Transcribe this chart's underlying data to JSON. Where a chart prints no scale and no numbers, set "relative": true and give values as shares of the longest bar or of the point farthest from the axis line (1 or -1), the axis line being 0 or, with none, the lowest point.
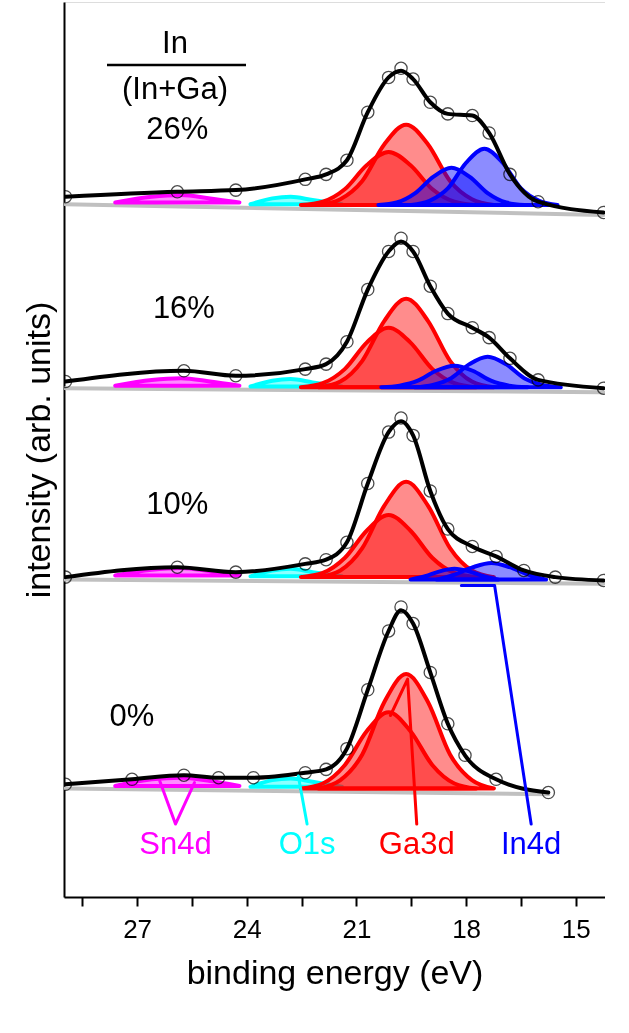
{
  "chart_data": {
    "type": "line",
    "relative": true,
    "xlabel": "binding energy (eV)",
    "ylabel": "intensity (arb. units)",
    "xlim": [
      29,
      14.2
    ],
    "xticks": [
      {
        "value": 28.5,
        "label": null
      },
      27,
      {
        "value": 25.5,
        "label": null
      },
      24,
      {
        "value": 22.5,
        "label": null
      },
      21,
      {
        "value": 19.5,
        "label": null
      },
      18,
      {
        "value": 16.5,
        "label": null
      },
      15
    ],
    "series": [
      {
        "color": "#c0c0c0",
        "x": [
          28.96,
          15.75
        ],
        "values": [
          0.131,
          0.124
        ]
      },
      {
        "color": "#c0c0c0",
        "x": [
          28.96,
          14.24
        ],
        "values": [
          0.383,
          0.378
        ]
      },
      {
        "color": "#c0c0c0",
        "x": [
          28.96,
          14.24
        ],
        "values": [
          0.614,
          0.609
        ]
      },
      {
        "color": "#c0c0c0",
        "x": [
          28.96,
          14.24
        ],
        "values": [
          0.836,
          0.823
        ]
      },
      {
        "type": "area",
        "color": "#ff00ff",
        "x": [
          27.6,
          26.6,
          25.8,
          25.0,
          24.2
        ],
        "values": [
          0.134,
          0.142,
          0.144,
          0.14,
          0.134
        ]
      },
      {
        "type": "area",
        "color": "#00ffff",
        "x": [
          23.9,
          23.3,
          22.8,
          22.2,
          21.4
        ],
        "values": [
          0.133,
          0.141,
          0.143,
          0.139,
          0.133
        ]
      },
      {
        "type": "area",
        "color": "#ff0000",
        "x": [
          22.52,
          21.92,
          21.32,
          20.72,
          20.12,
          19.52,
          18.92,
          18.32,
          17.72
        ],
        "values": [
          0.131,
          0.137,
          0.159,
          0.2,
          0.223,
          0.2,
          0.159,
          0.137,
          0.131
        ]
      },
      {
        "type": "area",
        "color": "#ff0000",
        "x": [
          22.04,
          21.44,
          20.84,
          20.24,
          19.64,
          19.04,
          18.44,
          17.84,
          17.24
        ],
        "values": [
          0.131,
          0.141,
          0.172,
          0.235,
          0.269,
          0.235,
          0.172,
          0.141,
          0.131
        ]
      },
      {
        "type": "area",
        "color": "#ff00ff",
        "x": [
          27.6,
          26.6,
          25.8,
          25.0,
          24.2
        ],
        "values": [
          0.388,
          0.395,
          0.397,
          0.393,
          0.388
        ]
      },
      {
        "type": "area",
        "color": "#00ffff",
        "x": [
          23.9,
          23.3,
          22.8,
          22.2,
          21.4
        ],
        "values": [
          0.387,
          0.394,
          0.396,
          0.392,
          0.387
        ]
      },
      {
        "type": "area",
        "color": "#ff0000",
        "x": [
          22.52,
          21.92,
          21.32,
          20.72,
          20.12,
          19.52,
          18.92,
          18.32,
          17.72
        ],
        "values": [
          0.386,
          0.391,
          0.409,
          0.442,
          0.461,
          0.442,
          0.409,
          0.391,
          0.386
        ]
      },
      {
        "type": "area",
        "color": "#ff0000",
        "x": [
          22.04,
          21.44,
          20.84,
          20.24,
          19.64,
          19.04,
          18.44,
          17.84,
          17.24
        ],
        "values": [
          0.386,
          0.394,
          0.421,
          0.472,
          0.501,
          0.472,
          0.421,
          0.394,
          0.386
        ]
      },
      {
        "type": "area",
        "color": "#0000ff",
        "x": [
          18.81,
          18.31,
          17.81,
          17.31,
          16.81,
          16.31,
          15.81
        ],
        "values": [
          0.383,
          0.389,
          0.398,
          0.403,
          0.398,
          0.389,
          0.383
        ]
      },
      {
        "type": "area",
        "color": "#0000ff",
        "x": [
          19.52,
          19.12,
          18.72,
          18.32,
          17.92,
          17.52,
          17.12
        ],
        "values": [
          0.383,
          0.387,
          0.393,
          0.396,
          0.393,
          0.387,
          0.383
        ]
      },
      {
        "type": "area",
        "color": "#ff00ff",
        "x": [
          27.6,
          26.6,
          25.8,
          25.0,
          24.2
        ],
        "values": [
          0.617,
          0.624,
          0.626,
          0.622,
          0.617
        ]
      },
      {
        "type": "area",
        "color": "#00ffff",
        "x": [
          23.9,
          23.3,
          22.8,
          22.2,
          21.4
        ],
        "values": [
          0.616,
          0.623,
          0.625,
          0.621,
          0.616
        ]
      },
      {
        "type": "area",
        "color": "#ff0000",
        "x": [
          22.52,
          21.92,
          21.32,
          20.72,
          20.12,
          19.52,
          18.92,
          18.32,
          17.72
        ],
        "values": [
          0.615,
          0.62,
          0.637,
          0.669,
          0.687,
          0.669,
          0.637,
          0.62,
          0.615
        ]
      },
      {
        "type": "area",
        "color": "#ff0000",
        "x": [
          22.04,
          21.44,
          20.84,
          20.24,
          19.64,
          19.04,
          18.44,
          17.84,
          17.24
        ],
        "values": [
          0.615,
          0.622,
          0.647,
          0.695,
          0.722,
          0.695,
          0.647,
          0.622,
          0.615
        ]
      },
      {
        "type": "area",
        "color": "#0000ff",
        "x": [
          20.32,
          19.82,
          19.32,
          18.82,
          18.32,
          17.82,
          17.32,
          16.82,
          16.32
        ],
        "values": [
          0.615,
          0.617,
          0.623,
          0.635,
          0.641,
          0.635,
          0.623,
          0.617,
          0.615
        ]
      },
      {
        "type": "area",
        "color": "#0000ff",
        "x": [
          19.41,
          18.91,
          18.41,
          17.91,
          17.41,
          16.91,
          16.41,
          15.91,
          15.41
        ],
        "values": [
          0.615,
          0.618,
          0.626,
          0.643,
          0.652,
          0.643,
          0.626,
          0.618,
          0.615
        ]
      },
      {
        "type": "area",
        "color": "#ff00ff",
        "x": [
          27.6,
          26.6,
          25.8,
          25.0,
          24.2
        ],
        "values": [
          0.838,
          0.845,
          0.847,
          0.843,
          0.838
        ]
      },
      {
        "type": "area",
        "color": "#00ffff",
        "x": [
          23.9,
          23.3,
          22.8,
          22.2,
          21.4
        ],
        "values": [
          0.836,
          0.843,
          0.845,
          0.841,
          0.836
        ]
      },
      {
        "type": "area",
        "color": "#ff0000",
        "x": [
          22.52,
          21.92,
          21.32,
          20.72,
          20.12,
          19.52,
          18.92,
          18.32,
          17.72
        ],
        "values": [
          0.835,
          0.839,
          0.854,
          0.883,
          0.899,
          0.883,
          0.854,
          0.839,
          0.835
        ]
      },
      {
        "type": "area",
        "color": "#ff0000",
        "x": [
          22.04,
          21.44,
          20.84,
          20.24,
          19.64,
          19.04,
          18.44,
          17.84,
          17.24
        ],
        "values": [
          0.835,
          0.842,
          0.864,
          0.908,
          0.932,
          0.908,
          0.864,
          0.842,
          0.835
        ]
      },
      {
        "type": "area",
        "color": "#0000ff",
        "x": [
          20.4,
          19.9,
          19.4,
          18.9,
          18.4,
          17.9,
          17.4,
          16.9,
          16.4
        ],
        "values": [
          0.835,
          0.838,
          0.849,
          0.869,
          0.88,
          0.869,
          0.849,
          0.838,
          0.835
        ]
      },
      {
        "type": "area",
        "color": "#0000ff",
        "x": [
          19.5,
          19.0,
          18.5,
          18.0,
          17.5,
          17.0,
          16.5,
          16.0,
          15.5
        ],
        "values": [
          0.835,
          0.84,
          0.855,
          0.886,
          0.903,
          0.886,
          0.855,
          0.84,
          0.835
        ]
      },
      {
        "type": "scatter",
        "name": "0%",
        "color": "#000000",
        "x": [
          28.96,
          27.14,
          25.72,
          24.77,
          23.82,
          22.4,
          21.83,
          21.26,
          20.69,
          20.12,
          19.78,
          19.45,
          18.98,
          18.5,
          18.03,
          17.18,
          15.75
        ],
        "values": [
          0.136,
          0.142,
          0.147,
          0.144,
          0.144,
          0.15,
          0.154,
          0.179,
          0.25,
          0.321,
          0.35,
          0.33,
          0.271,
          0.209,
          0.171,
          0.142,
          0.126
        ]
      },
      {
        "color": "#000000",
        "x": [
          28.96,
          27.14,
          25.72,
          24.77,
          23.82,
          22.4,
          21.83,
          21.26,
          20.69,
          20.12,
          19.78,
          19.45,
          18.98,
          18.5,
          18.03,
          17.18,
          15.75
        ],
        "values": [
          0.136,
          0.142,
          0.147,
          0.144,
          0.144,
          0.15,
          0.154,
          0.179,
          0.25,
          0.321,
          0.346,
          0.33,
          0.271,
          0.209,
          0.171,
          0.142,
          0.126
        ]
      },
      {
        "type": "scatter",
        "name": "10%",
        "color": "#000000",
        "x": [
          28.96,
          25.9,
          24.3,
          22.4,
          21.83,
          21.26,
          20.69,
          20.12,
          19.78,
          19.45,
          18.98,
          18.5,
          17.83,
          17.18,
          16.42,
          15.56,
          14.24
        ],
        "values": [
          0.386,
          0.398,
          0.392,
          0.402,
          0.407,
          0.428,
          0.499,
          0.561,
          0.578,
          0.557,
          0.49,
          0.444,
          0.423,
          0.411,
          0.394,
          0.386,
          0.382
        ]
      },
      {
        "color": "#000000",
        "x": [
          28.96,
          25.9,
          24.3,
          22.4,
          21.83,
          21.26,
          20.69,
          20.12,
          19.78,
          19.45,
          18.98,
          18.5,
          17.83,
          17.18,
          16.42,
          15.56,
          14.24
        ],
        "values": [
          0.386,
          0.398,
          0.392,
          0.402,
          0.407,
          0.428,
          0.499,
          0.561,
          0.574,
          0.557,
          0.49,
          0.444,
          0.423,
          0.411,
          0.394,
          0.386,
          0.382
        ]
      },
      {
        "type": "scatter",
        "name": "16%",
        "color": "#000000",
        "x": [
          28.96,
          25.72,
          24.3,
          22.4,
          21.83,
          21.26,
          20.69,
          20.12,
          19.78,
          19.45,
          18.98,
          18.5,
          17.83,
          17.37,
          16.8,
          16.03,
          14.24
        ],
        "values": [
          0.622,
          0.635,
          0.629,
          0.637,
          0.643,
          0.67,
          0.733,
          0.779,
          0.795,
          0.779,
          0.737,
          0.704,
          0.687,
          0.675,
          0.65,
          0.624,
          0.614
        ]
      },
      {
        "color": "#000000",
        "x": [
          28.96,
          25.72,
          24.3,
          22.4,
          21.83,
          21.26,
          20.69,
          20.12,
          19.78,
          19.45,
          18.98,
          18.5,
          17.83,
          17.37,
          16.8,
          16.03,
          14.24
        ],
        "values": [
          0.622,
          0.635,
          0.629,
          0.637,
          0.643,
          0.67,
          0.733,
          0.779,
          0.791,
          0.779,
          0.737,
          0.704,
          0.687,
          0.675,
          0.65,
          0.624,
          0.614
        ]
      },
      {
        "type": "scatter",
        "name": "26%",
        "color": "#000000",
        "x": [
          28.96,
          25.9,
          24.3,
          22.4,
          21.83,
          21.26,
          20.69,
          20.12,
          19.78,
          19.45,
          18.98,
          18.5,
          17.83,
          17.37,
          16.8,
          16.03,
          14.24
        ],
        "values": [
          0.845,
          0.851,
          0.853,
          0.866,
          0.872,
          0.889,
          0.947,
          0.989,
          1.0,
          0.987,
          0.959,
          0.945,
          0.943,
          0.922,
          0.872,
          0.839,
          0.826
        ]
      },
      {
        "color": "#000000",
        "x": [
          28.96,
          25.9,
          24.3,
          22.4,
          21.83,
          21.26,
          20.69,
          20.12,
          19.78,
          19.45,
          18.98,
          18.5,
          17.83,
          17.37,
          16.8,
          16.03,
          14.24
        ],
        "values": [
          0.845,
          0.851,
          0.853,
          0.866,
          0.872,
          0.889,
          0.947,
          0.989,
          0.997,
          0.987,
          0.959,
          0.945,
          0.943,
          0.922,
          0.872,
          0.839,
          0.826
        ]
      },
      {
        "name": "Sn4d",
        "color": "#ff00ff",
        "x": [
          26.38,
          25.95,
          25.43
        ],
        "values": [
          0.14,
          0.088,
          0.138
        ]
      },
      {
        "name": "O1s",
        "color": "#00ffff",
        "x": [
          22.35,
          22.59
        ],
        "values": [
          0.088,
          0.146
        ]
      },
      {
        "name": "Ga3d",
        "color": "#ff0000",
        "x": [
          20.07,
          19.35,
          19.6
        ],
        "values": [
          0.219,
          0.088,
          0.263
        ]
      },
      {
        "name": "In4d",
        "color": "#0000ff",
        "x": [
          18.13,
          16.22,
          17.22
        ],
        "values": [
          0.376,
          0.088,
          0.376
        ]
      }
    ],
    "annotations": [
      "In",
      "(In+Ga)"
    ]
  }
}
